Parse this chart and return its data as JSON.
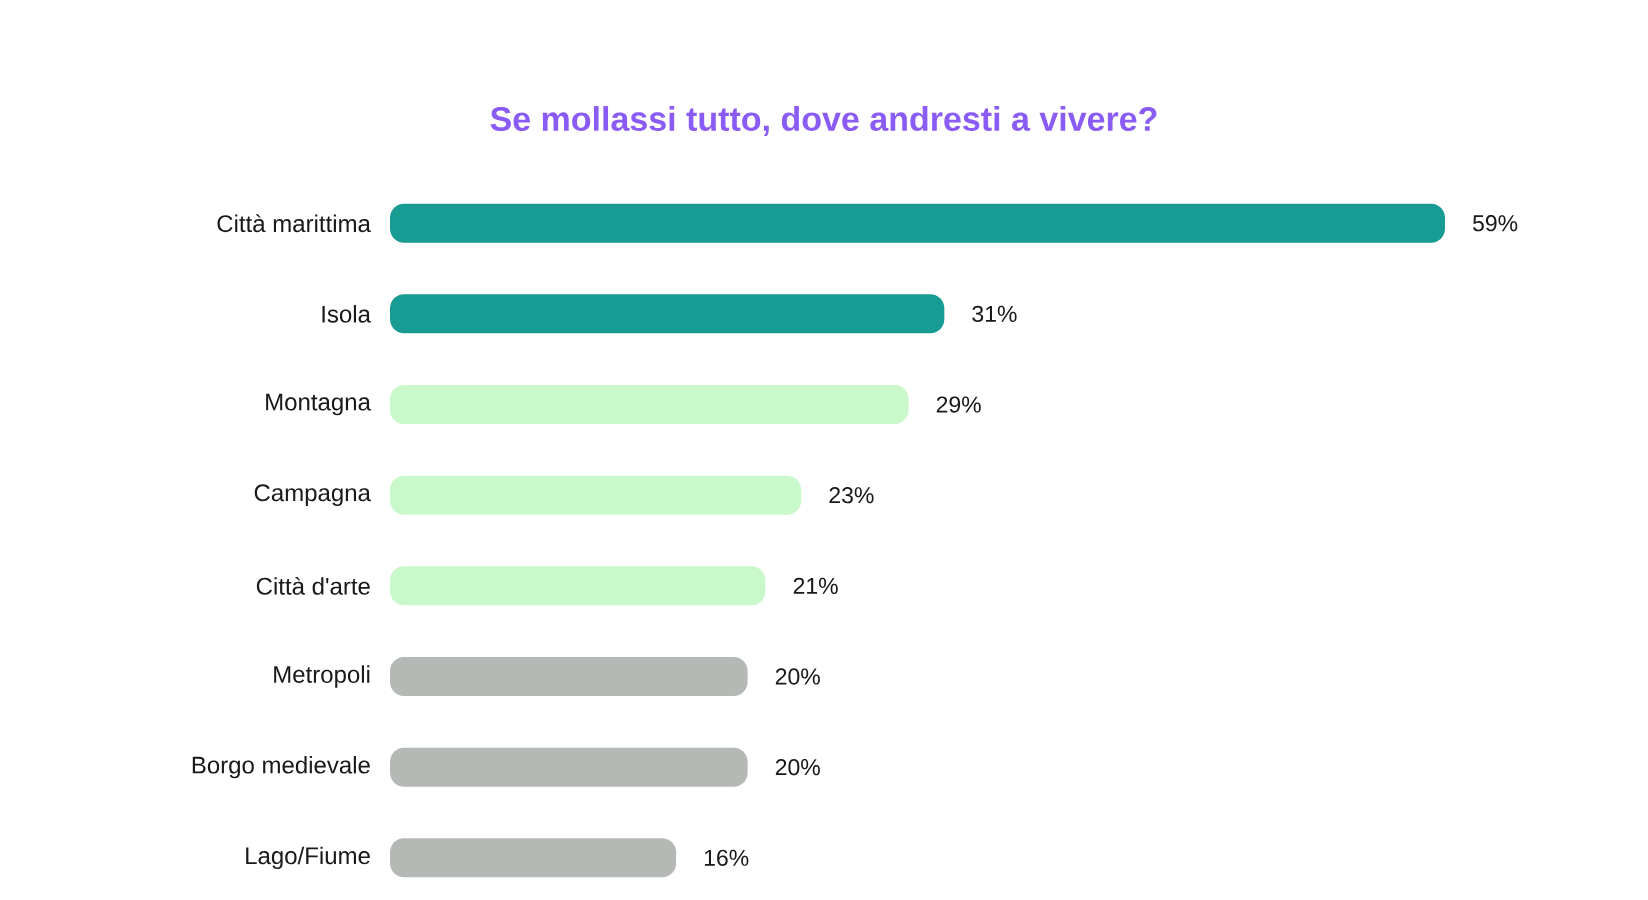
{
  "chart_data": {
    "type": "bar",
    "orientation": "horizontal",
    "title": "Se mollassi tutto, dove andresti a vivere?",
    "categories": [
      "Città marittima",
      "Isola",
      "Montagna",
      "Campagna",
      "Città d'arte",
      "Metropoli",
      "Borgo medievale",
      "Lago/Fiume"
    ],
    "values": [
      59,
      31,
      29,
      23,
      21,
      20,
      20,
      16
    ],
    "colors": [
      "#179b93",
      "#179b93",
      "#c9f8cb",
      "#c9f8cb",
      "#c9f8cb",
      "#b4b9b5",
      "#b4b9b5",
      "#b4b9b5"
    ],
    "value_labels": [
      "59%",
      "31%",
      "29%",
      "23%",
      "21%",
      "20%",
      "20%",
      "16%"
    ]
  }
}
